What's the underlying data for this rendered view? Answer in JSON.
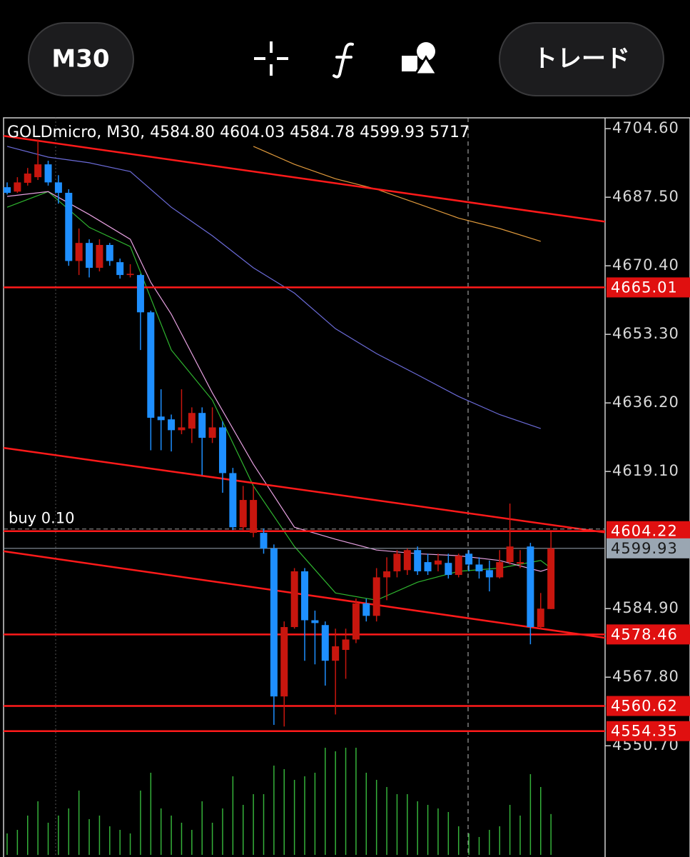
{
  "toolbar": {
    "timeframe": "M30",
    "trade_button": "トレード"
  },
  "chart_data": {
    "type": "candlestick",
    "title": "GOLDmicro, M30, 4584.80 4604.03 4584.78 4599.93 5717",
    "up_color": "#c8160e",
    "down_color": "#1e8fff",
    "volume_color": "#35b23a",
    "ylim": [
      4547,
      4707.3
    ],
    "yticks": [
      {
        "value": 4704.6,
        "label": "4704.60"
      },
      {
        "value": 4687.5,
        "label": "4687.50"
      },
      {
        "value": 4670.4,
        "label": "4670.40"
      },
      {
        "value": 4653.3,
        "label": "4653.30"
      },
      {
        "value": 4636.2,
        "label": "4636.20"
      },
      {
        "value": 4619.1,
        "label": "4619.10"
      },
      {
        "value": 4584.9,
        "label": "4584.90"
      },
      {
        "value": 4567.8,
        "label": "4567.80"
      },
      {
        "value": 4550.7,
        "label": "4550.70"
      }
    ],
    "open": [
      4690.0,
      4688.9,
      4691.1,
      4692.5,
      4695.7,
      4691.2,
      4688.6,
      4671.6,
      4676.1,
      4669.9,
      4675.6,
      4671.3,
      4668.1,
      4668.1,
      4658.8,
      4632.8,
      4632.1,
      4629.4,
      4629.8,
      4633.7,
      4627.5,
      4630.1,
      4618.7,
      4605.2,
      4603.8,
      4603.8,
      4599.9,
      4563.0,
      4580.3,
      4594.2,
      4582.0,
      4580.8,
      4571.9,
      4574.6,
      4577.2,
      4586.2,
      4583.1,
      4592.7,
      4594.2,
      4594.5,
      4599.5,
      4596.5,
      4595.9,
      4596.3,
      4593.3,
      4598.6,
      4595.9,
      4594.5,
      4592.7,
      4596.5,
      4596.1,
      4600.4,
      4580.3,
      4584.8
    ],
    "high": [
      4691.2,
      4692.5,
      4694.8,
      4701.9,
      4696.6,
      4693.0,
      4689.5,
      4679.7,
      4677.0,
      4677.0,
      4676.1,
      4672.2,
      4670.8,
      4668.4,
      4659.2,
      4639.6,
      4633.3,
      4639.6,
      4635.1,
      4635.1,
      4635.1,
      4631.6,
      4620.0,
      4615.5,
      4615.5,
      4604.9,
      4600.9,
      4581.7,
      4595.0,
      4595.0,
      4584.4,
      4581.7,
      4579.9,
      4579.9,
      4587.4,
      4587.4,
      4595.0,
      4597.7,
      4599.5,
      4599.9,
      4600.4,
      4598.6,
      4598.6,
      4598.6,
      4598.6,
      4599.5,
      4597.7,
      4596.9,
      4599.5,
      4611.1,
      4599.5,
      4601.3,
      4588.8,
      4604.03
    ],
    "low": [
      4688.2,
      4688.6,
      4690.4,
      4691.8,
      4690.4,
      4685.9,
      4670.4,
      4668.1,
      4667.5,
      4669.0,
      4670.4,
      4667.2,
      4667.5,
      4649.4,
      4624.4,
      4624.4,
      4624.1,
      4628.4,
      4626.2,
      4618.2,
      4626.2,
      4613.8,
      4604.5,
      4604.5,
      4602.7,
      4598.6,
      4555.9,
      4555.5,
      4579.9,
      4571.9,
      4571.0,
      4565.7,
      4558.5,
      4567.4,
      4576.3,
      4581.7,
      4581.7,
      4587.0,
      4592.7,
      4593.3,
      4593.3,
      4593.3,
      4594.2,
      4592.4,
      4592.7,
      4594.2,
      4592.4,
      4589.2,
      4592.4,
      4595.9,
      4595.0,
      4576.0,
      4579.9,
      4584.78
    ],
    "close": [
      4688.6,
      4691.2,
      4693.4,
      4695.7,
      4691.2,
      4688.6,
      4671.6,
      4676.1,
      4669.9,
      4675.6,
      4671.6,
      4668.1,
      4668.4,
      4658.8,
      4632.5,
      4631.9,
      4629.4,
      4630.1,
      4633.7,
      4627.5,
      4630.1,
      4618.7,
      4605.2,
      4612.0,
      4612.0,
      4599.9,
      4563.0,
      4580.3,
      4594.2,
      4582.0,
      4581.3,
      4571.9,
      4575.5,
      4577.2,
      4586.2,
      4583.1,
      4592.7,
      4594.2,
      4598.6,
      4599.5,
      4594.2,
      4594.2,
      4596.9,
      4593.3,
      4598.1,
      4595.9,
      4594.2,
      4592.7,
      4596.5,
      4600.4,
      4596.5,
      4580.3,
      4584.9,
      4599.93
    ],
    "volume": [
      3000,
      3500,
      5500,
      7500,
      4500,
      5500,
      6500,
      9000,
      5000,
      5500,
      4000,
      3500,
      3000,
      9000,
      11500,
      6500,
      5500,
      4500,
      3500,
      7500,
      4500,
      6500,
      11000,
      7000,
      8500,
      8500,
      12500,
      12000,
      10500,
      11000,
      11500,
      15000,
      14500,
      15000,
      15000,
      11500,
      10500,
      9500,
      8500,
      8500,
      7500,
      7000,
      6500,
      6000,
      4000,
      3000,
      2500,
      3500,
      4000,
      7000,
      5500,
      11300,
      9500,
      5717
    ],
    "moving_averages": [
      {
        "color": "#2fb52f",
        "x": [
          0,
          4,
          8,
          12,
          16,
          20,
          24,
          28,
          32,
          36,
          40,
          44,
          48,
          52,
          53
        ],
        "values": [
          4685.0,
          4688.9,
          4680.0,
          4675.2,
          4649.4,
          4636.9,
          4615.5,
          4600.4,
          4588.8,
          4587.0,
          4591.5,
          4594.2,
          4595.0,
          4596.9,
          4595.0
        ]
      },
      {
        "color": "#e6a0e0",
        "x": [
          0,
          4,
          8,
          12,
          14,
          16,
          20,
          24,
          28,
          32,
          36,
          40,
          44,
          48,
          52,
          53
        ],
        "values": [
          4687.7,
          4688.9,
          4683.2,
          4677.0,
          4666.3,
          4658.3,
          4638.7,
          4620.9,
          4605.2,
          4602.2,
          4599.5,
          4598.6,
          4598.1,
          4596.9,
          4594.2,
          4595.0
        ]
      },
      {
        "color": "#6b6bd8",
        "x": [
          0,
          4,
          8,
          12,
          16,
          20,
          24,
          28,
          32,
          36,
          40,
          44,
          48,
          52
        ],
        "values": [
          4700.2,
          4697.5,
          4696.1,
          4693.9,
          4685.0,
          4677.9,
          4669.9,
          4663.6,
          4654.7,
          4648.5,
          4643.2,
          4637.8,
          4633.3,
          4629.8
        ]
      },
      {
        "color": "#e09a3c",
        "x": [
          24,
          28,
          32,
          36,
          40,
          44,
          48,
          52
        ],
        "values": [
          4700.2,
          4695.7,
          4692.1,
          4689.5,
          4685.9,
          4682.3,
          4679.7,
          4676.5
        ]
      }
    ],
    "trendlines": [
      {
        "start": 4702.8,
        "end": 4681.4
      },
      {
        "start": 4625.0,
        "end": 4603.9
      },
      {
        "start": 4599.2,
        "end": 4577.6
      }
    ],
    "levels": [
      {
        "value": 4665.01,
        "label": "4665.01"
      },
      {
        "value": 4604.22,
        "label": "4604.22"
      },
      {
        "value": 4578.46,
        "label": "4578.46"
      },
      {
        "value": 4560.62,
        "label": "4560.62"
      },
      {
        "value": 4554.35,
        "label": "4554.35"
      }
    ],
    "order_label": "buy 0.10",
    "current_price": {
      "value": 4599.93,
      "label": "4599.93"
    }
  }
}
